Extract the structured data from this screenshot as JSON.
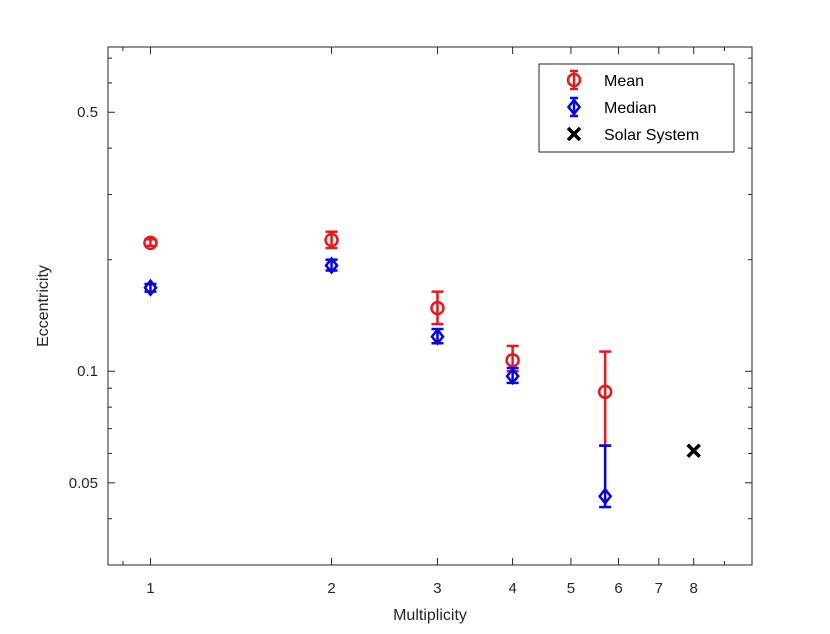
{
  "chart_data": {
    "type": "scatter",
    "xlabel": "Multiplicity",
    "ylabel": "Eccentricity",
    "x_scale": "log",
    "y_scale": "log",
    "xlim": [
      0.85,
      10
    ],
    "ylim": [
      0.03,
      0.75
    ],
    "x_ticks": [
      1,
      2,
      3,
      4,
      5,
      6,
      7,
      8
    ],
    "x_tick_labels": [
      "1",
      "2",
      "3",
      "4",
      "5",
      "6",
      "7",
      "8"
    ],
    "y_ticks": [
      0.05,
      0.1,
      0.5
    ],
    "y_tick_labels": [
      "0.05",
      "0.1",
      "0.5"
    ],
    "grid": false,
    "legend_position": "top-right",
    "series": [
      {
        "name": "Mean",
        "marker": "circle",
        "color": "#e41a1c",
        "error_bars": true,
        "points": [
          {
            "x": 1,
            "y": 0.222,
            "low": 0.218,
            "high": 0.227
          },
          {
            "x": 2,
            "y": 0.226,
            "low": 0.215,
            "high": 0.238
          },
          {
            "x": 3,
            "y": 0.148,
            "low": 0.134,
            "high": 0.164
          },
          {
            "x": 4,
            "y": 0.107,
            "low": 0.1,
            "high": 0.117
          },
          {
            "x": 5.7,
            "y": 0.088,
            "low": 0.063,
            "high": 0.113
          }
        ]
      },
      {
        "name": "Median",
        "marker": "diamond",
        "color": "#0000ee",
        "error_bars": true,
        "points": [
          {
            "x": 1,
            "y": 0.168,
            "low": 0.164,
            "high": 0.172
          },
          {
            "x": 2,
            "y": 0.193,
            "low": 0.187,
            "high": 0.2
          },
          {
            "x": 3,
            "y": 0.124,
            "low": 0.119,
            "high": 0.13
          },
          {
            "x": 4,
            "y": 0.097,
            "low": 0.093,
            "high": 0.102
          },
          {
            "x": 5.7,
            "y": 0.046,
            "low": 0.043,
            "high": 0.063
          }
        ]
      },
      {
        "name": "Solar System",
        "marker": "x",
        "color": "#000000",
        "error_bars": false,
        "points": [
          {
            "x": 8,
            "y": 0.061
          }
        ]
      }
    ]
  }
}
